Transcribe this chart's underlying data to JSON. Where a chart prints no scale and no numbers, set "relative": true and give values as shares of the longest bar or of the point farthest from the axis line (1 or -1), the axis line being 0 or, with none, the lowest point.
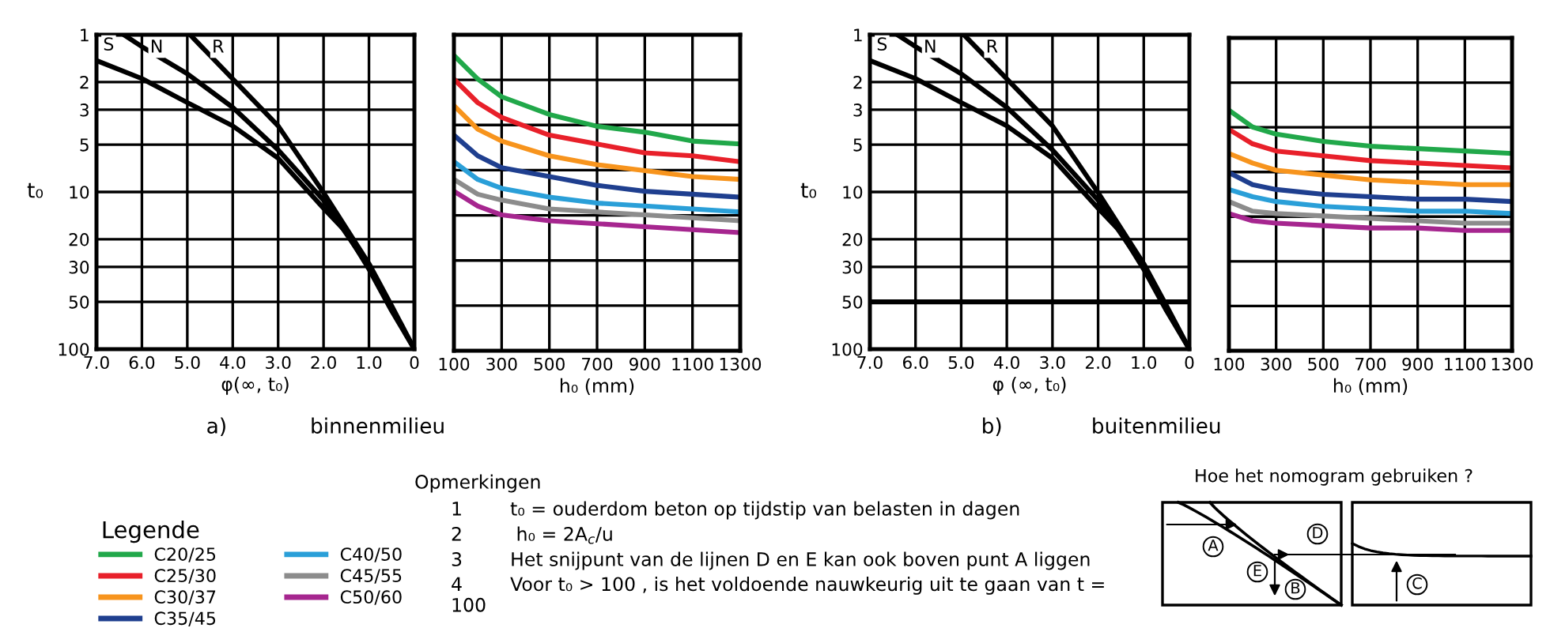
{
  "chart_data": [
    {
      "type": "line",
      "xlabel": "φ(∞, t₀)",
      "ylabel": "t₀",
      "log": "y",
      "grid": true,
      "line_style": "solid",
      "xlim": [
        7.0,
        0
      ],
      "xticks": [
        {
          "value": 7,
          "label": "7.0"
        },
        {
          "value": 6,
          "label": "6.0"
        },
        {
          "value": 5,
          "label": "5.0"
        },
        {
          "value": 4,
          "label": "4.0"
        },
        {
          "value": 3,
          "label": "3.0"
        },
        {
          "value": 2,
          "label": "2.0"
        },
        {
          "value": 1,
          "label": "1.0"
        },
        0
      ],
      "ylim": [
        100,
        1
      ],
      "yticks": [
        1,
        2,
        3,
        5,
        10,
        20,
        30,
        50,
        100
      ],
      "annotations": [
        "a)",
        "binnenmilieu"
      ],
      "series": [
        {
          "name": "S",
          "color": "#000000",
          "x": [
            7.0,
            6.0,
            5.0,
            4.0,
            3.0,
            2.0,
            1.5,
            1.0,
            0.5,
            0
          ],
          "values": [
            1.46,
            1.9,
            2.7,
            3.8,
            6.1,
            12.7,
            18,
            31,
            57,
            100
          ]
        },
        {
          "name": "N",
          "color": "#000000",
          "x": [
            6.4,
            6.0,
            5.0,
            4.0,
            3.0,
            2.0,
            1.0,
            0.5,
            0
          ],
          "values": [
            1,
            1.19,
            1.77,
            2.9,
            5.4,
            11.3,
            30,
            55,
            100
          ]
        },
        {
          "name": "R",
          "color": "#000000",
          "x": [
            4.94,
            4.0,
            3.0,
            2.0,
            1.0,
            0.5,
            0
          ],
          "values": [
            1,
            1.91,
            3.8,
            10.1,
            28.6,
            53,
            100
          ]
        }
      ]
    },
    {
      "type": "line",
      "xlabel": "h₀ (mm)",
      "relative": true,
      "grid": true,
      "line_style": "solid",
      "legend": "bottom",
      "legend_title": "Legende",
      "xlim": [
        100,
        1300
      ],
      "xticks": [
        100,
        300,
        500,
        700,
        900,
        1100,
        1300
      ],
      "x": [
        100,
        200,
        300,
        500,
        700,
        900,
        1100,
        1300
      ],
      "series": [
        {
          "name": "C20/25",
          "color": "#21a84a",
          "values": [
            1.0,
            0.92,
            0.86,
            0.8,
            0.76,
            0.74,
            0.71,
            0.7
          ]
        },
        {
          "name": "C25/30",
          "color": "#e8202a",
          "values": [
            0.92,
            0.84,
            0.79,
            0.73,
            0.7,
            0.67,
            0.66,
            0.64
          ]
        },
        {
          "name": "C30/37",
          "color": "#f7941d",
          "values": [
            0.83,
            0.75,
            0.71,
            0.66,
            0.63,
            0.61,
            0.59,
            0.58
          ]
        },
        {
          "name": "C35/45",
          "color": "#1f3f8f",
          "values": [
            0.73,
            0.66,
            0.62,
            0.59,
            0.56,
            0.54,
            0.53,
            0.52
          ]
        },
        {
          "name": "C40/50",
          "color": "#2a9fd8",
          "values": [
            0.64,
            0.58,
            0.55,
            0.52,
            0.5,
            0.49,
            0.48,
            0.47
          ]
        },
        {
          "name": "C45/55",
          "color": "#8c8c8c",
          "values": [
            0.58,
            0.53,
            0.51,
            0.48,
            0.47,
            0.46,
            0.45,
            0.44
          ]
        },
        {
          "name": "C50/60",
          "color": "#a6268f",
          "values": [
            0.54,
            0.49,
            0.46,
            0.44,
            0.43,
            0.42,
            0.41,
            0.4
          ]
        }
      ]
    },
    {
      "type": "line",
      "xlabel": "φ (∞, t₀)",
      "ylabel": "t₀",
      "log": "y",
      "grid": true,
      "line_style": "solid",
      "xlim": [
        7.0,
        0
      ],
      "xticks": [
        {
          "value": 7,
          "label": "7.0"
        },
        {
          "value": 6,
          "label": "6.0"
        },
        {
          "value": 5,
          "label": "5.0"
        },
        {
          "value": 4,
          "label": "4.0"
        },
        {
          "value": 3,
          "label": "3.0"
        },
        {
          "value": 2,
          "label": "2.0"
        },
        {
          "value": 1,
          "label": "1.0"
        },
        0
      ],
      "ylim": [
        100,
        1
      ],
      "yticks": [
        1,
        2,
        3,
        5,
        10,
        20,
        30,
        50,
        100
      ],
      "ref_lines": [
        {
          "axis": "y",
          "value": 50,
          "color": "#000000"
        }
      ],
      "annotations": [
        "b)",
        "buitenmilieu"
      ],
      "series": [
        {
          "name": "S",
          "color": "#000000",
          "x": [
            7.0,
            6.0,
            5.0,
            4.0,
            3.0,
            2.0,
            1.5,
            1.0,
            0.5,
            0
          ],
          "values": [
            1.46,
            1.9,
            2.7,
            3.8,
            6.1,
            12.7,
            18,
            31,
            57,
            100
          ]
        },
        {
          "name": "N",
          "color": "#000000",
          "x": [
            6.4,
            6.0,
            5.0,
            4.0,
            3.0,
            2.0,
            1.0,
            0.5,
            0
          ],
          "values": [
            1,
            1.19,
            1.77,
            2.9,
            5.4,
            11.3,
            30,
            55,
            100
          ]
        },
        {
          "name": "R",
          "color": "#000000",
          "x": [
            4.94,
            4.0,
            3.0,
            2.0,
            1.0,
            0.5,
            0
          ],
          "values": [
            1,
            1.91,
            3.8,
            10.1,
            28.6,
            53,
            100
          ]
        }
      ]
    },
    {
      "type": "line",
      "xlabel": "h₀ (mm)",
      "relative": true,
      "grid": true,
      "line_style": "solid",
      "xlim": [
        100,
        1300
      ],
      "xticks": [
        100,
        300,
        500,
        700,
        900,
        1100,
        1300
      ],
      "x": [
        100,
        200,
        300,
        500,
        700,
        900,
        1100,
        1300
      ],
      "series": [
        {
          "color": "#21a84a",
          "values": [
            1.0,
            0.93,
            0.9,
            0.87,
            0.85,
            0.84,
            0.83,
            0.82
          ]
        },
        {
          "color": "#e8202a",
          "values": [
            0.92,
            0.86,
            0.83,
            0.81,
            0.79,
            0.78,
            0.77,
            0.76
          ]
        },
        {
          "color": "#f7941d",
          "values": [
            0.82,
            0.78,
            0.75,
            0.73,
            0.71,
            0.7,
            0.69,
            0.69
          ]
        },
        {
          "color": "#1f3f8f",
          "values": [
            0.74,
            0.69,
            0.67,
            0.65,
            0.64,
            0.63,
            0.63,
            0.62
          ]
        },
        {
          "color": "#2a9fd8",
          "values": [
            0.67,
            0.64,
            0.62,
            0.6,
            0.59,
            0.58,
            0.58,
            0.57
          ]
        },
        {
          "color": "#8c8c8c",
          "values": [
            0.62,
            0.58,
            0.57,
            0.56,
            0.55,
            0.54,
            0.53,
            0.53
          ]
        },
        {
          "color": "#a6268f",
          "values": [
            0.57,
            0.54,
            0.53,
            0.52,
            0.51,
            0.51,
            0.5,
            0.5
          ]
        }
      ]
    },
    {
      "type": "other",
      "title": "Hoe het nomogram gebruiken ?",
      "annotations": [
        "Opmerkingen",
        "1        t₀ = ouderdom beton op tijdstip van belasten in dagen",
        "2         h₀ = 2A$_{c}$/u",
        "3        Het snijpunt van de lijnen D en E kan ook boven punt A liggen",
        "4        Voor t₀ > 100 , is het voldoende nauwkeurig uit te gaan van t = 100",
        "A",
        "B",
        "C",
        "D",
        "E"
      ]
    }
  ]
}
